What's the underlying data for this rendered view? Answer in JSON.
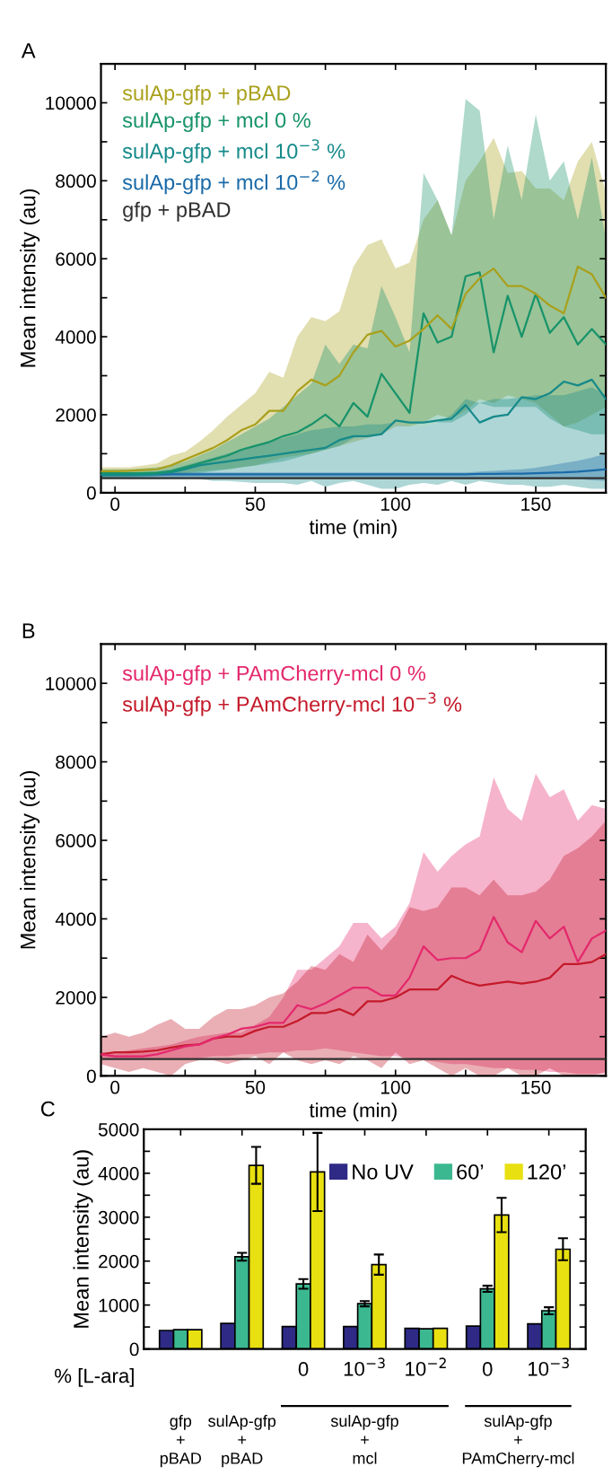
{
  "chart_data": [
    {
      "type": "line",
      "annotations": [
        "A"
      ],
      "xlabel": "time (min)",
      "ylabel": "Mean intensity (au)",
      "xlim": [
        -5,
        175
      ],
      "ylim": [
        0,
        11000
      ],
      "xticks": [
        0,
        {
          "value": 25,
          "label": null
        },
        50,
        {
          "value": 75,
          "label": null
        },
        100,
        {
          "value": 125,
          "label": null
        },
        150,
        {
          "value": 175,
          "label": null
        }
      ],
      "yticks": [
        0,
        {
          "value": 1000,
          "label": null
        },
        2000,
        {
          "value": 3000,
          "label": null
        },
        4000,
        {
          "value": 5000,
          "label": null
        },
        6000,
        {
          "value": 7000,
          "label": null
        },
        8000,
        {
          "value": 9000,
          "label": null
        },
        10000
      ],
      "legend": "top left",
      "grid": false,
      "x": [
        -5,
        0,
        5,
        10,
        15,
        20,
        25,
        30,
        35,
        40,
        45,
        50,
        55,
        60,
        65,
        70,
        75,
        80,
        85,
        90,
        95,
        100,
        105,
        110,
        115,
        120,
        125,
        130,
        135,
        140,
        145,
        150,
        155,
        160,
        165,
        170,
        175
      ],
      "series": [
        {
          "name": "sulAp-gfp + pBAD",
          "color": "#a9a01c",
          "values": [
            550,
            550,
            560,
            580,
            600,
            700,
            850,
            1000,
            1150,
            1350,
            1600,
            1750,
            2100,
            2100,
            2600,
            2900,
            2750,
            3000,
            3600,
            4050,
            4150,
            3750,
            3900,
            4200,
            4550,
            4200,
            5100,
            5500,
            5750,
            5300,
            5300,
            5100,
            4800,
            4600,
            5800,
            5600,
            5000
          ],
          "upper": [
            650,
            650,
            650,
            700,
            750,
            950,
            1050,
            1300,
            1600,
            1950,
            2250,
            2550,
            3100,
            2950,
            4000,
            4500,
            4400,
            4650,
            5800,
            6350,
            6500,
            5750,
            5900,
            7000,
            7500,
            6600,
            8000,
            8500,
            9100,
            8200,
            8250,
            7800,
            7800,
            7500,
            8500,
            9000,
            7700
          ],
          "lower": [
            400,
            400,
            420,
            430,
            440,
            450,
            500,
            550,
            580,
            600,
            650,
            700,
            800,
            900,
            950,
            1000,
            1100,
            1200,
            1300,
            1400,
            1500,
            1700,
            1700,
            1800,
            2000,
            1900,
            2100,
            2400,
            2300,
            2500,
            2400,
            2300,
            2000,
            1700,
            1800,
            2000,
            2200
          ]
        },
        {
          "name": "sulAp-gfp + mcl 0 %",
          "color": "#17936a",
          "values": [
            500,
            500,
            500,
            500,
            510,
            550,
            650,
            750,
            850,
            950,
            1100,
            1200,
            1300,
            1450,
            1550,
            1750,
            2000,
            1700,
            2300,
            1950,
            3050,
            2550,
            2050,
            4600,
            3850,
            4000,
            5550,
            5650,
            3600,
            5050,
            4000,
            5100,
            4100,
            4500,
            3800,
            4200,
            3800
          ],
          "upper": [
            600,
            600,
            600,
            620,
            650,
            700,
            800,
            950,
            1100,
            1300,
            1500,
            1700,
            1900,
            2200,
            2500,
            2800,
            3800,
            3300,
            3800,
            3700,
            5300,
            4500,
            3600,
            8200,
            7500,
            6600,
            10100,
            9800,
            7000,
            8900,
            7500,
            9700,
            8000,
            8500,
            7000,
            8600,
            6500
          ],
          "lower": [
            400,
            400,
            400,
            400,
            420,
            450,
            480,
            500,
            550,
            600,
            650,
            700,
            750,
            800,
            900,
            1000,
            1100,
            1200,
            1400,
            1450,
            1500,
            1800,
            1700,
            1700,
            1800,
            1800,
            2000,
            2300,
            2200,
            2200,
            2200,
            2200,
            1900,
            1700,
            1600,
            1500,
            1500
          ]
        },
        {
          "name": "sulAp-gfp + mcl 10$^{−3}$ %",
          "color": "#168a8a",
          "values": [
            450,
            450,
            450,
            460,
            480,
            520,
            600,
            700,
            750,
            800,
            850,
            900,
            950,
            1000,
            1050,
            1100,
            1150,
            1350,
            1450,
            1450,
            1500,
            1850,
            1800,
            1800,
            1850,
            1900,
            2250,
            1800,
            1950,
            2000,
            2450,
            2400,
            2550,
            2850,
            2750,
            2900,
            2400
          ],
          "upper": [
            520,
            520,
            520,
            530,
            550,
            600,
            700,
            800,
            900,
            1000,
            1100,
            1200,
            1300,
            1400,
            1500,
            1600,
            1650,
            1700,
            1700,
            1750,
            1750,
            1800,
            1700,
            1700,
            1800,
            2000,
            2400,
            2300,
            2400,
            2400,
            2450,
            2500,
            2500,
            2500,
            2600,
            2700,
            2500
          ],
          "lower": [
            380,
            380,
            380,
            380,
            380,
            380,
            380,
            350,
            300,
            300,
            280,
            250,
            250,
            250,
            200,
            300,
            150,
            250,
            300,
            200,
            100,
            100,
            200,
            250,
            200,
            300,
            200,
            300,
            250,
            200,
            200,
            150,
            150,
            200,
            150,
            100,
            100
          ]
        },
        {
          "name": "sulAp-gfp + mcl 10$^{−2}$ %",
          "color": "#1a6aa8",
          "values": [
            470,
            470,
            470,
            470,
            470,
            470,
            470,
            470,
            470,
            470,
            470,
            470,
            470,
            470,
            470,
            470,
            470,
            470,
            470,
            470,
            470,
            470,
            470,
            470,
            470,
            470,
            470,
            480,
            480,
            490,
            490,
            500,
            510,
            520,
            540,
            570,
            600
          ],
          "upper": [
            520,
            520,
            520,
            520,
            520,
            520,
            520,
            520,
            520,
            520,
            520,
            520,
            520,
            520,
            520,
            520,
            520,
            520,
            520,
            520,
            520,
            520,
            520,
            520,
            520,
            520,
            520,
            540,
            560,
            580,
            600,
            640,
            700,
            760,
            820,
            900,
            1000
          ],
          "lower": [
            360,
            360,
            360,
            360,
            360,
            360,
            360,
            360,
            360,
            360,
            360,
            360,
            360,
            360,
            360,
            360,
            360,
            360,
            360,
            360,
            360,
            360,
            360,
            360,
            360,
            360,
            360,
            360,
            360,
            360,
            360,
            360,
            360,
            360,
            350,
            320,
            300
          ]
        },
        {
          "name": "gfp + pBAD",
          "color": "#303030",
          "values": [
            370,
            370,
            370,
            370,
            370,
            370,
            370,
            370,
            370,
            370,
            370,
            370,
            370,
            370,
            370,
            370,
            370,
            370,
            370,
            370,
            370,
            370,
            370,
            370,
            370,
            370,
            370,
            370,
            370,
            370,
            370,
            370,
            370,
            370,
            370,
            370,
            370
          ]
        }
      ]
    },
    {
      "type": "line",
      "annotations": [
        "B"
      ],
      "xlabel": "time (min)",
      "ylabel": "Mean intensity (au)",
      "xlim": [
        -5,
        175
      ],
      "ylim": [
        0,
        11000
      ],
      "xticks": [
        0,
        {
          "value": 25,
          "label": null
        },
        50,
        {
          "value": 75,
          "label": null
        },
        100,
        {
          "value": 125,
          "label": null
        },
        150,
        {
          "value": 175,
          "label": null
        }
      ],
      "yticks": [
        0,
        {
          "value": 1000,
          "label": null
        },
        2000,
        {
          "value": 3000,
          "label": null
        },
        4000,
        {
          "value": 5000,
          "label": null
        },
        6000,
        {
          "value": 7000,
          "label": null
        },
        8000,
        {
          "value": 9000,
          "label": null
        },
        10000
      ],
      "legend": "top left",
      "grid": false,
      "x": [
        -5,
        0,
        5,
        10,
        15,
        20,
        25,
        30,
        35,
        40,
        45,
        50,
        55,
        60,
        65,
        70,
        75,
        80,
        85,
        90,
        95,
        100,
        105,
        110,
        115,
        120,
        125,
        130,
        135,
        140,
        145,
        150,
        155,
        160,
        165,
        170,
        175
      ],
      "series": [
        {
          "name": "sulAp-gfp + PAmCherry-mcl 0 %",
          "color": "#e4286c",
          "values": [
            550,
            500,
            500,
            500,
            550,
            650,
            750,
            800,
            950,
            1050,
            1200,
            1250,
            1350,
            1350,
            1800,
            1700,
            1850,
            2050,
            2250,
            2250,
            2050,
            2050,
            2500,
            3300,
            2950,
            3000,
            3000,
            3200,
            4050,
            3400,
            3150,
            3950,
            3500,
            3800,
            2900,
            3500,
            3700
          ],
          "upper": [
            600,
            600,
            650,
            700,
            750,
            800,
            900,
            1000,
            1050,
            1100,
            1100,
            1300,
            1500,
            2000,
            2700,
            2700,
            3000,
            3300,
            3900,
            3900,
            3500,
            3800,
            4400,
            5700,
            5200,
            5600,
            5900,
            6100,
            7600,
            6800,
            6500,
            7700,
            7100,
            7300,
            6500,
            6900,
            6800
          ],
          "lower": [
            450,
            450,
            450,
            450,
            450,
            450,
            450,
            450,
            500,
            500,
            550,
            550,
            600,
            600,
            650,
            650,
            700,
            650,
            600,
            550,
            500,
            500,
            450,
            400,
            350,
            300,
            300,
            250,
            200,
            200,
            150,
            150,
            100,
            100,
            50,
            50,
            50
          ]
        },
        {
          "name": "sulAp-gfp + PAmCherry-mcl 10$^{−3}$ %",
          "color": "#c41a2a",
          "values": [
            550,
            600,
            600,
            620,
            650,
            720,
            780,
            800,
            950,
            1000,
            1000,
            1150,
            1250,
            1250,
            1400,
            1600,
            1600,
            1700,
            1550,
            1900,
            1900,
            2000,
            2200,
            2200,
            2200,
            2550,
            2400,
            2300,
            2350,
            2400,
            2350,
            2400,
            2500,
            2850,
            2850,
            2900,
            3100
          ],
          "upper": [
            1000,
            1100,
            1000,
            1100,
            1300,
            1450,
            1200,
            1200,
            1500,
            1700,
            1700,
            1800,
            2000,
            2100,
            2400,
            2800,
            2700,
            3100,
            2900,
            3600,
            3200,
            3600,
            4300,
            4200,
            4300,
            4800,
            4800,
            4600,
            5000,
            4600,
            4600,
            4700,
            5000,
            5600,
            5800,
            6100,
            6500
          ],
          "lower": [
            300,
            200,
            100,
            200,
            100,
            0,
            300,
            400,
            400,
            300,
            400,
            500,
            300,
            600,
            400,
            300,
            400,
            300,
            500,
            400,
            200,
            600,
            300,
            400,
            200,
            0,
            200,
            0,
            0,
            200,
            0,
            0,
            200,
            0,
            0,
            0,
            100
          ]
        },
        {
          "color": "#303030",
          "values": [
            430,
            430,
            430,
            430,
            430,
            430,
            430,
            430,
            430,
            430,
            430,
            430,
            430,
            430,
            430,
            430,
            430,
            430,
            430,
            430,
            430,
            430,
            430,
            430,
            430,
            430,
            430,
            430,
            430,
            430,
            430,
            430,
            430,
            430,
            430,
            430,
            430
          ]
        }
      ]
    },
    {
      "type": "bar",
      "annotations": [
        "C",
        "% [L-ara]",
        "gfp\n+\npBAD",
        "sulAp-gfp\n+\npBAD",
        "sulAp-gfp\n+\nmcl",
        "sulAp-gfp\n+\nPAmCherry-mcl"
      ],
      "ylabel": "Mean intensity (au)",
      "ylim": [
        0,
        5000
      ],
      "yticks": [
        0,
        {
          "value": 500,
          "label": null
        },
        1000,
        {
          "value": 1500,
          "label": null
        },
        2000,
        {
          "value": 2500,
          "label": null
        },
        3000,
        {
          "value": 3500,
          "label": null
        },
        4000,
        {
          "value": 4500,
          "label": null
        },
        5000
      ],
      "categories": [
        null,
        null,
        "0",
        "10$^{−3}$",
        "10$^{−2}$",
        "0",
        "10$^{−3}$"
      ],
      "legend": "top right",
      "grid": false,
      "series": [
        {
          "name": "No UV",
          "color": "#2e2a86",
          "values": [
            420,
            580,
            510,
            510,
            470,
            520,
            570
          ]
        },
        {
          "name": "60’",
          "color": "#3cb890",
          "values": [
            440,
            2100,
            1480,
            1030,
            460,
            1370,
            870
          ],
          "errors": [
            null,
            90,
            110,
            60,
            null,
            70,
            80
          ]
        },
        {
          "name": "120’",
          "color": "#e8e010",
          "values": [
            440,
            4180,
            4030,
            1920,
            470,
            3050,
            2270
          ],
          "errors": [
            null,
            420,
            890,
            230,
            null,
            390,
            250
          ]
        }
      ]
    }
  ]
}
